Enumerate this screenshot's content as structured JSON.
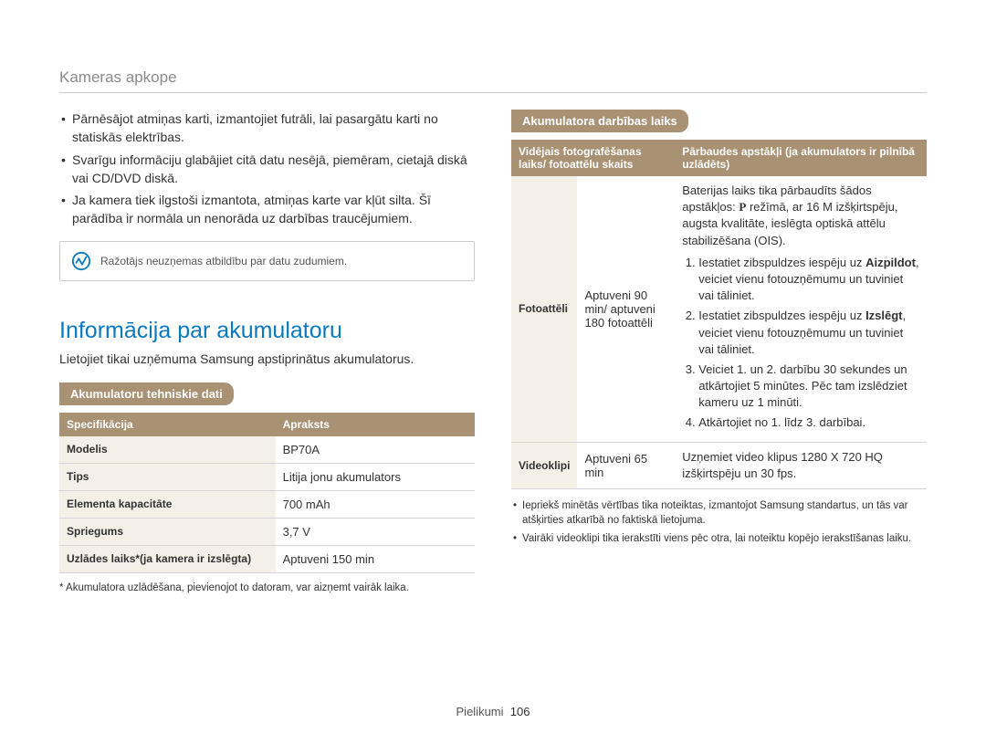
{
  "breadcrumb": "Kameras apkope",
  "left": {
    "bullets": [
      "Pārnēsājot atmiņas karti, izmantojiet futrāli, lai pasargātu karti no statiskās elektrības.",
      "Svarīgu informāciju glabājiet citā datu nesējā, piemēram, cietajā diskā vai CD/DVD diskā.",
      "Ja kamera tiek ilgstoši izmantota, atmiņas karte var kļūt silta. Šī parādība ir normāla un nenorāda uz darbības traucējumiem."
    ],
    "note": "Ražotājs neuzņemas atbildību par datu zudumiem.",
    "h1": "Informācija par akumulatoru",
    "intro": "Lietojiet tikai uzņēmuma Samsung apstiprinātus akumulatorus.",
    "pill": "Akumulatoru tehniskie dati",
    "spec_headers": [
      "Specifikācija",
      "Apraksts"
    ],
    "spec_rows": [
      [
        "Modelis",
        "BP70A"
      ],
      [
        "Tips",
        "Litija jonu akumulators"
      ],
      [
        "Elementa kapacitāte",
        "700 mAh"
      ],
      [
        "Spriegums",
        "3,7 V"
      ],
      [
        "Uzlādes laiks*(ja kamera ir izslēgta)",
        "Aptuveni 150 min"
      ]
    ],
    "footnote": "* Akumulatora uzlādēšana, pievienojot to datoram, var aizņemt vairāk laika."
  },
  "right": {
    "pill": "Akumulatora darbības laiks",
    "headers": [
      "Vidējais fotografēšanas laiks/ fotoattēlu skaits",
      "Pārbaudes apstākļi (ja akumulators ir pilnībā uzlādēts)"
    ],
    "row1": {
      "k": "Fotoattēli",
      "v": "Aptuveni 90 min/ aptuveni 180 fotoattēli",
      "desc_top": "Baterijas laiks tika pārbaudīts šādos apstākļos: ",
      "desc_top2": " režīmā, ar 16 M izšķirtspēju, augsta kvalitāte, ieslēgta optiskā attēlu stabilizēšana (OIS).",
      "steps": [
        "Iestatiet zibspuldzes iespēju uz <b>Aizpildot</b>, veiciet vienu fotouzņēmumu un tuviniet vai tāliniet.",
        "Iestatiet zibspuldzes iespēju uz <b>Izslēgt</b>, veiciet vienu fotouzņēmumu un tuviniet vai tāliniet.",
        "Veiciet 1. un 2. darbību 30 sekundes un atkārtojiet 5 minūtes. Pēc tam izslēdziet kameru uz 1 minūti.",
        "Atkārtojiet no 1. līdz 3. darbībai."
      ]
    },
    "row2": {
      "k": "Videoklipi",
      "v": "Aptuveni 65 min",
      "desc": "Uzņemiet video klipus 1280 X 720 HQ izšķirtspēju un 30 fps."
    },
    "notes": [
      "Iepriekš minētās vērtības tika noteiktas, izmantojot Samsung standartus, un tās var atšķirties atkarībā no faktiskā lietojuma.",
      "Vairāki videoklipi tika ierakstīti viens pēc otra, lai noteiktu kopējo ierakstīšanas laiku."
    ]
  },
  "footer": {
    "section": "Pielikumi",
    "page": "106"
  },
  "colors": {
    "accent": "#a99174",
    "blue": "#0a7abf",
    "tint": "#f4efe7",
    "border": "#d5d5d5"
  }
}
